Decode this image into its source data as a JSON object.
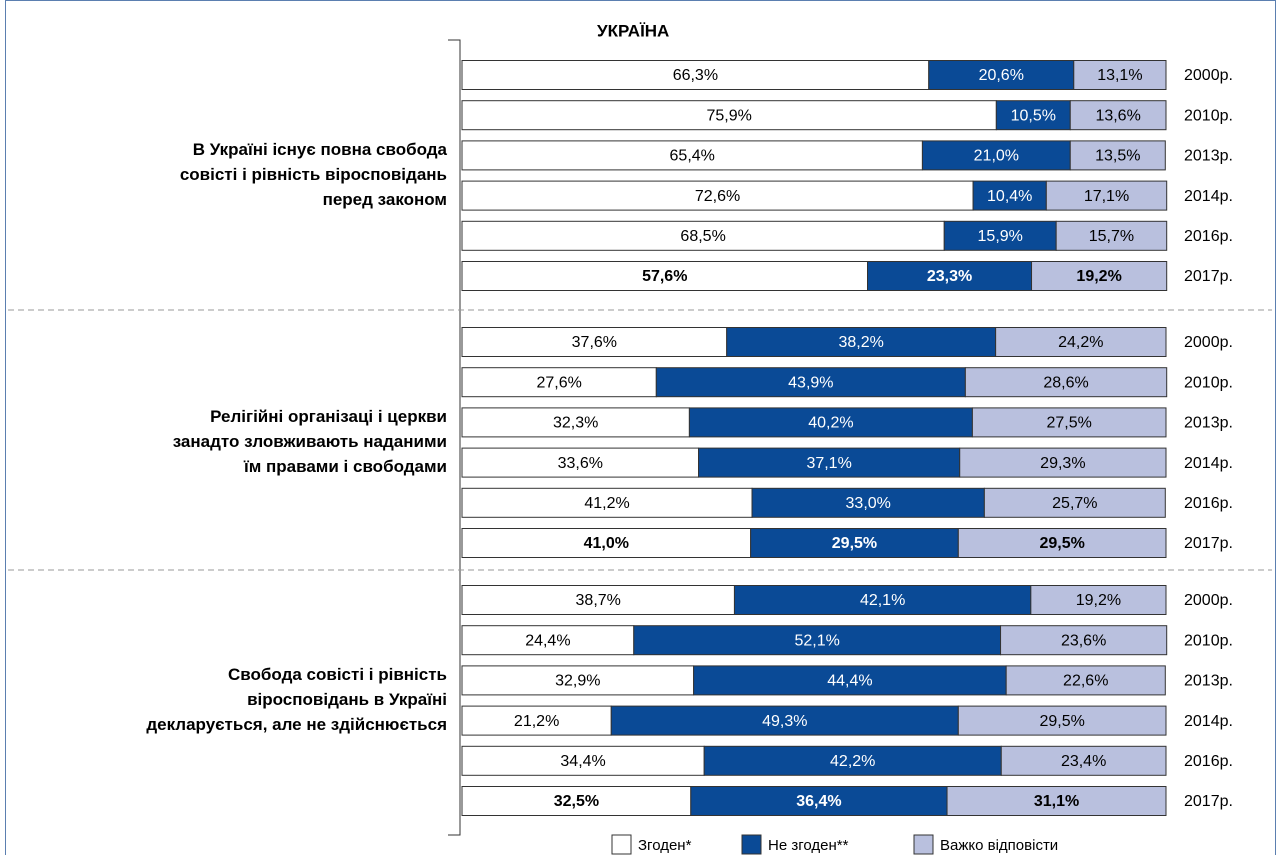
{
  "chart_data": {
    "type": "bar",
    "orientation": "horizontal",
    "stacked": true,
    "title": "УКРАЇНА",
    "xlim": [
      0,
      100
    ],
    "bold_last_row": true,
    "series": [
      {
        "name": "Згоден*",
        "color": "#ffffff",
        "text_color": "#000000"
      },
      {
        "name": "Не згоден**",
        "color": "#0a4a96",
        "text_color": "#ffffff"
      },
      {
        "name": "Важко відповісти",
        "color": "#b9c0de",
        "text_color": "#000000"
      }
    ],
    "groups": [
      {
        "label_lines": [
          "В Україні існує повна свобода",
          "совісті і рівність віросповідань",
          "перед законом"
        ],
        "categories": [
          "2000р.",
          "2010р.",
          "2013р.",
          "2014р.",
          "2016р.",
          "2017р."
        ],
        "values": [
          [
            66.3,
            75.9,
            65.4,
            72.6,
            68.5,
            57.6
          ],
          [
            20.6,
            10.5,
            21.0,
            10.4,
            15.9,
            23.3
          ],
          [
            13.1,
            13.6,
            13.5,
            17.1,
            15.7,
            19.2
          ]
        ],
        "value_labels": [
          [
            "66,3%",
            "75,9%",
            "65,4%",
            "72,6%",
            "68,5%",
            "57,6%"
          ],
          [
            "20,6%",
            "10,5%",
            "21,0%",
            "10,4%",
            "15,9%",
            "23,3%"
          ],
          [
            "13,1%",
            "13,6%",
            "13,5%",
            "17,1%",
            "15,7%",
            "19,2%"
          ]
        ]
      },
      {
        "label_lines": [
          "Релігійні організаці і церкви",
          "занадто зловживають наданими",
          "їм правами і свободами"
        ],
        "categories": [
          "2000р.",
          "2010р.",
          "2013р.",
          "2014р.",
          "2016р.",
          "2017р."
        ],
        "values": [
          [
            37.6,
            27.6,
            32.3,
            33.6,
            41.2,
            41.0
          ],
          [
            38.2,
            43.9,
            40.2,
            37.1,
            33.0,
            29.5
          ],
          [
            24.2,
            28.6,
            27.5,
            29.3,
            25.7,
            29.5
          ]
        ],
        "value_labels": [
          [
            "37,6%",
            "27,6%",
            "32,3%",
            "33,6%",
            "41,2%",
            "41,0%"
          ],
          [
            "38,2%",
            "43,9%",
            "40,2%",
            "37,1%",
            "33,0%",
            "29,5%"
          ],
          [
            "24,2%",
            "28,6%",
            "27,5%",
            "29,3%",
            "25,7%",
            "29,5%"
          ]
        ]
      },
      {
        "label_lines": [
          "Свобода совісті і рівність",
          "віросповідань в Україні",
          "декларується, але не здійснюється"
        ],
        "categories": [
          "2000р.",
          "2010р.",
          "2013р.",
          "2014р.",
          "2016р.",
          "2017р."
        ],
        "values": [
          [
            38.7,
            24.4,
            32.9,
            21.2,
            34.4,
            32.5
          ],
          [
            42.1,
            52.1,
            44.4,
            49.3,
            42.2,
            36.4
          ],
          [
            19.2,
            23.6,
            22.6,
            29.5,
            23.4,
            31.1
          ]
        ],
        "value_labels": [
          [
            "38,7%",
            "24,4%",
            "32,9%",
            "21,2%",
            "34,4%",
            "32,5%"
          ],
          [
            "42,1%",
            "52,1%",
            "44,4%",
            "49,3%",
            "42,2%",
            "36,4%"
          ],
          [
            "19,2%",
            "23,6%",
            "22,6%",
            "29,5%",
            "23,4%",
            "31,1%"
          ]
        ]
      }
    ]
  }
}
